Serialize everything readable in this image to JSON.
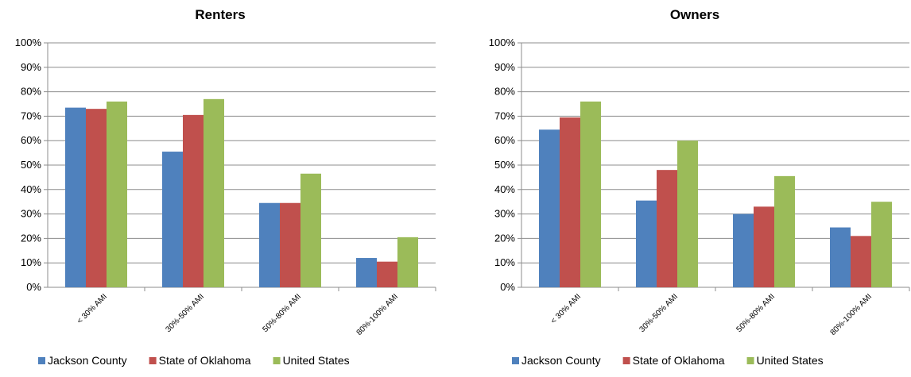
{
  "chart_data": [
    {
      "type": "bar",
      "title": "Renters",
      "categories": [
        "< 30% AMI",
        "30%-50% AMI",
        "50%-80% AMI",
        "80%-100% AMI"
      ],
      "series": [
        {
          "name": "Jackson County",
          "color": "#4F81BD",
          "values": [
            73.5,
            55.5,
            34.5,
            12.0
          ]
        },
        {
          "name": "State of Oklahoma",
          "color": "#C0504D",
          "values": [
            73.0,
            70.5,
            34.5,
            10.5
          ]
        },
        {
          "name": "United States",
          "color": "#9BBB59",
          "values": [
            76.0,
            77.0,
            46.5,
            20.5
          ]
        }
      ],
      "ylim": [
        0,
        100
      ],
      "yticks": [
        "0%",
        "10%",
        "20%",
        "30%",
        "40%",
        "50%",
        "60%",
        "70%",
        "80%",
        "90%",
        "100%"
      ],
      "xlabel": "",
      "ylabel": "",
      "grid": true,
      "legend": "bottom"
    },
    {
      "type": "bar",
      "title": "Owners",
      "categories": [
        "< 30% AMI",
        "30%-50% AMI",
        "50%-80% AMI",
        "80%-100% AMI"
      ],
      "series": [
        {
          "name": "Jackson County",
          "color": "#4F81BD",
          "values": [
            64.5,
            35.5,
            30.0,
            24.5
          ]
        },
        {
          "name": "State of Oklahoma",
          "color": "#C0504D",
          "values": [
            69.5,
            48.0,
            33.0,
            21.0
          ]
        },
        {
          "name": "United States",
          "color": "#9BBB59",
          "values": [
            76.0,
            60.0,
            45.5,
            35.0
          ]
        }
      ],
      "ylim": [
        0,
        100
      ],
      "yticks": [
        "0%",
        "10%",
        "20%",
        "30%",
        "40%",
        "50%",
        "60%",
        "70%",
        "80%",
        "90%",
        "100%"
      ],
      "xlabel": "",
      "ylabel": "",
      "grid": true,
      "legend": "bottom"
    }
  ]
}
